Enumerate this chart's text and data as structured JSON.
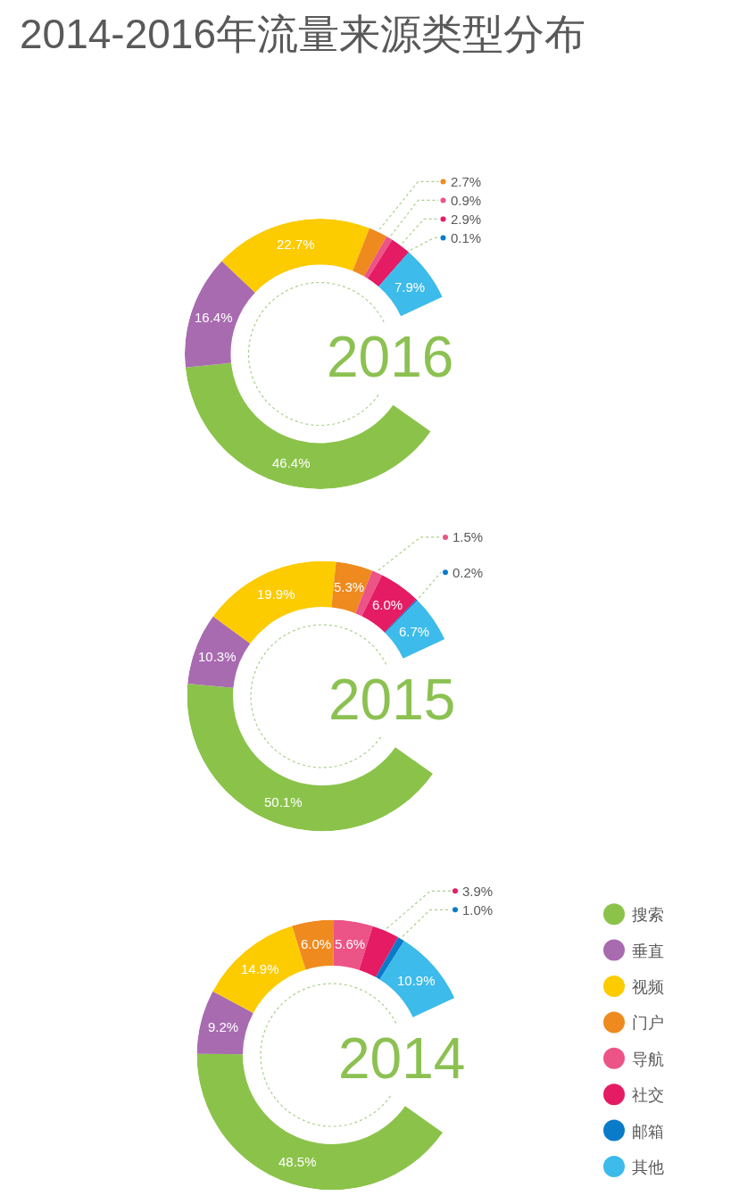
{
  "chart_data": {
    "type": "donut",
    "title": "2014-2016年流量来源类型分布",
    "categories": [
      "搜索",
      "垂直",
      "视频",
      "门户",
      "导航",
      "社交",
      "邮箱",
      "其他"
    ],
    "colors": [
      "#8bc34a",
      "#a86bb0",
      "#fccb00",
      "#ef8a1f",
      "#ec5386",
      "#e51b63",
      "#0a7bc9",
      "#3dbbea"
    ],
    "series": [
      {
        "name": "2016",
        "values": [
          46.4,
          16.4,
          22.7,
          2.7,
          0.9,
          2.9,
          0.1,
          7.9
        ],
        "value_labels": [
          "46.4%",
          "16.4%",
          "22.7%",
          "2.7%",
          "0.9%",
          "2.9%",
          "0.1%",
          "7.9%"
        ]
      },
      {
        "name": "2015",
        "values": [
          50.1,
          10.3,
          19.9,
          5.3,
          1.5,
          6.0,
          0.2,
          6.7
        ],
        "value_labels": [
          "50.1%",
          "10.3%",
          "19.9%",
          "5.3%",
          "1.5%",
          "6.0%",
          "0.2%",
          "6.7%"
        ]
      },
      {
        "name": "2014",
        "values": [
          48.5,
          9.2,
          14.9,
          6.0,
          5.6,
          3.9,
          1.0,
          10.9
        ],
        "value_labels": [
          "48.5%",
          "9.2%",
          "14.9%",
          "6.0%",
          "5.6%",
          "3.9%",
          "1.0%",
          "10.9%"
        ]
      }
    ],
    "legend": "bottom right"
  }
}
